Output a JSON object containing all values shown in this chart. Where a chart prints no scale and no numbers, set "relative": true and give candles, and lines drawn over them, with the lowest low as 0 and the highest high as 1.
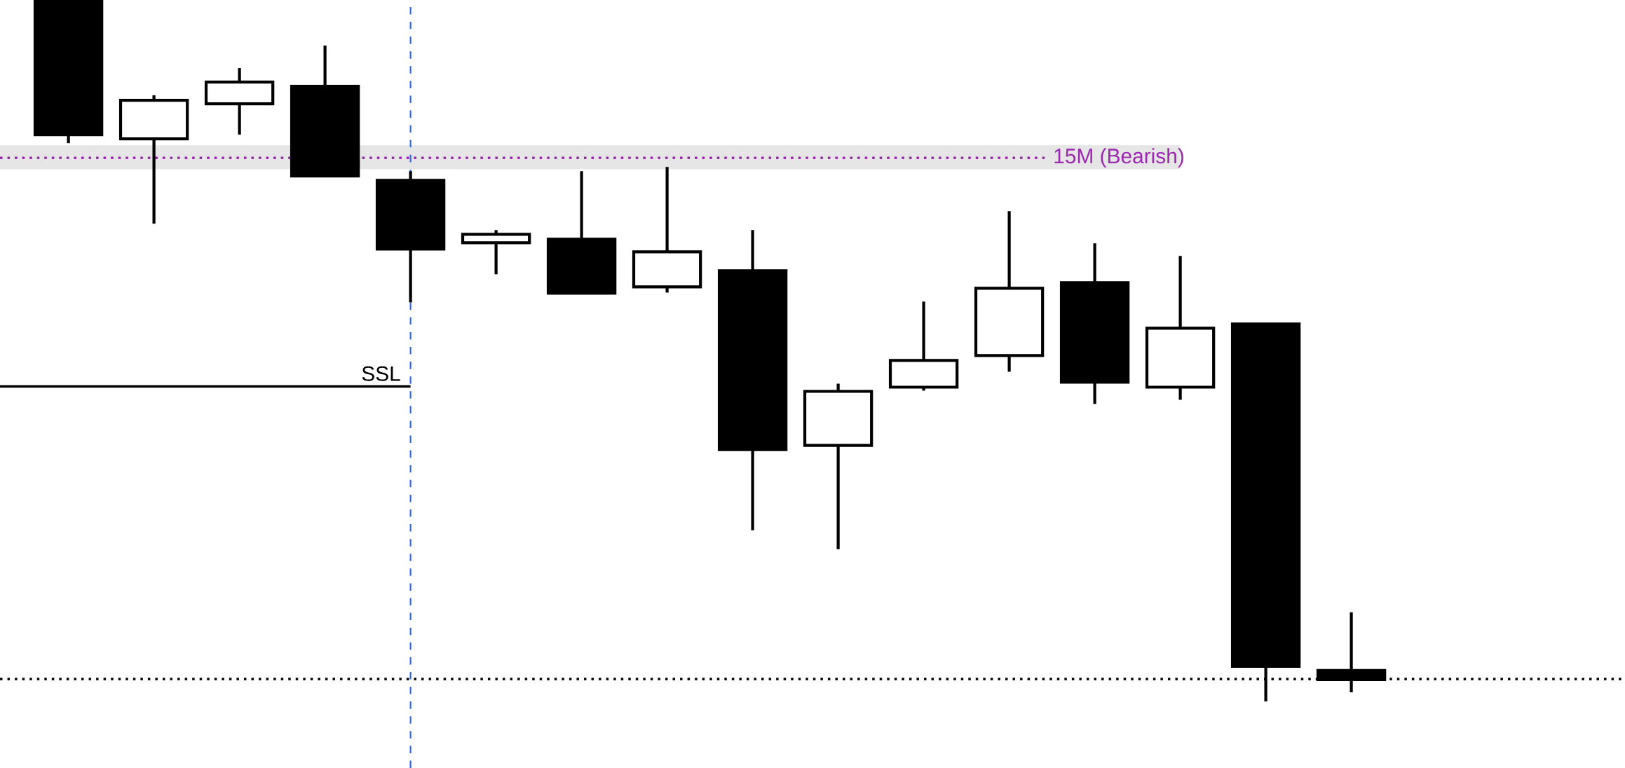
{
  "chart_data": {
    "type": "candlestick",
    "relative": true,
    "categories": [
      null,
      null,
      null,
      null,
      null,
      null,
      null,
      null,
      null,
      null,
      null,
      null,
      null,
      null,
      null,
      null
    ],
    "ohlc": [
      [
        1.0,
        1.0,
        0.796,
        0.808
      ],
      [
        0.802,
        0.864,
        0.681,
        0.857
      ],
      [
        0.852,
        0.903,
        0.808,
        0.883
      ],
      [
        0.877,
        0.935,
        0.749,
        0.749
      ],
      [
        0.743,
        0.756,
        0.569,
        0.645
      ],
      [
        0.654,
        0.672,
        0.609,
        0.666
      ],
      [
        0.659,
        0.756,
        0.582,
        0.582
      ],
      [
        0.591,
        0.762,
        0.583,
        0.641
      ],
      [
        0.614,
        0.672,
        0.244,
        0.359
      ],
      [
        0.365,
        0.453,
        0.217,
        0.442
      ],
      [
        0.448,
        0.57,
        0.443,
        0.486
      ],
      [
        0.493,
        0.699,
        0.47,
        0.589
      ],
      [
        0.597,
        0.653,
        0.424,
        0.455
      ],
      [
        0.448,
        0.635,
        0.43,
        0.532
      ],
      [
        0.538,
        0.538,
        0.0,
        0.05
      ],
      [
        0.044,
        0.127,
        0.013,
        0.031
      ]
    ],
    "colors": [
      "#000000",
      "#ffffff",
      "#ffffff",
      "#000000",
      "#000000",
      "#ffffff",
      "#000000",
      "#ffffff",
      "#000000",
      "#ffffff",
      "#ffffff",
      "#ffffff",
      "#000000",
      "#ffffff",
      "#000000",
      "#000000"
    ],
    "bands": [
      {
        "axis": "y",
        "from": 0.759,
        "to": 0.793,
        "color": "#e6e6e6"
      }
    ],
    "ref_lines": [
      {
        "axis": "y",
        "value": 0.775,
        "label": "15M (Bearish)",
        "color": "#9c27b0",
        "line_style": "dotted"
      },
      {
        "axis": "y",
        "value": 0.449,
        "label": "SSL",
        "color": "#000000",
        "line_style": "solid"
      },
      {
        "axis": "y",
        "value": 0.032,
        "color": "#000000",
        "line_style": "dotted"
      }
    ]
  }
}
